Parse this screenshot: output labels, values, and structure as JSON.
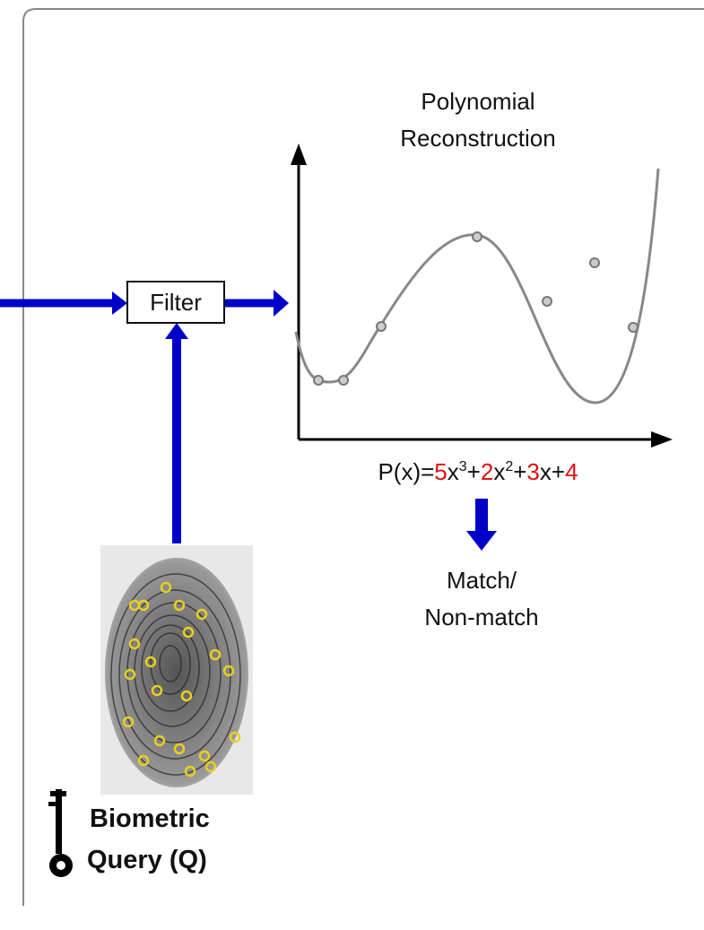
{
  "diagram": {
    "title": [
      "Polynomial",
      "Reconstruction"
    ],
    "filter": "Filter",
    "formula": [
      {
        "text": "P(x)="
      },
      {
        "text": "5",
        "color": "#e01010"
      },
      {
        "text": "x"
      },
      {
        "text": "3",
        "superscript": true
      },
      {
        "text": "+"
      },
      {
        "text": "2",
        "color": "#e01010"
      },
      {
        "text": "x"
      },
      {
        "text": "2",
        "superscript": true
      },
      {
        "text": "+"
      },
      {
        "text": "3",
        "color": "#e01010"
      },
      {
        "text": "x+"
      },
      {
        "text": "4",
        "color": "#e01010"
      }
    ],
    "result": [
      "Match/",
      "Non-match"
    ],
    "query": [
      "Biometric",
      "Query (Q)"
    ]
  }
}
